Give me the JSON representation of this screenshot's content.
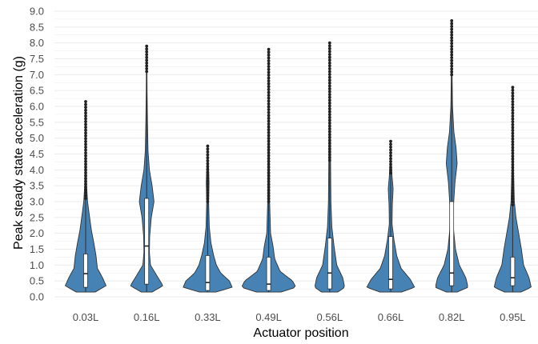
{
  "chart_data": {
    "type": "violin",
    "title": "",
    "xlabel": "Actuator position",
    "ylabel": "Peak steady state acceleration (g)",
    "ylim": [
      0,
      9
    ],
    "yticks": [
      "0.0",
      "0.5",
      "1.0",
      "1.5",
      "2.0",
      "2.5",
      "3.0",
      "3.5",
      "4.0",
      "4.5",
      "5.0",
      "5.5",
      "6.0",
      "6.5",
      "7.0",
      "7.5",
      "8.0",
      "8.5",
      "9.0"
    ],
    "grid": true,
    "colors": {
      "fill": "#4682b4",
      "outline": "#333333",
      "box": "#ffffff",
      "grid": "#ebebeb"
    },
    "categories": [
      "0.03L",
      "0.16L",
      "0.33L",
      "0.49L",
      "0.56L",
      "0.66L",
      "0.82L",
      "0.95L"
    ],
    "series": [
      {
        "category": "0.03L",
        "min": 0.15,
        "q1": 0.3,
        "median": 0.73,
        "q3": 1.35,
        "whisker_high": 3.1,
        "max": 6.15,
        "density": [
          [
            0.15,
            0.35
          ],
          [
            0.35,
            0.75
          ],
          [
            0.6,
            0.62
          ],
          [
            0.9,
            0.43
          ],
          [
            1.3,
            0.38
          ],
          [
            1.7,
            0.3
          ],
          [
            2.1,
            0.21
          ],
          [
            2.6,
            0.13
          ],
          [
            3.0,
            0.07
          ],
          [
            3.5,
            0.035
          ],
          [
            4.5,
            0.018
          ],
          [
            5.5,
            0.01
          ],
          [
            6.15,
            0
          ]
        ]
      },
      {
        "category": "0.16L",
        "min": 0.15,
        "q1": 0.4,
        "median": 1.6,
        "q3": 3.1,
        "whisker_high": 7.1,
        "max": 7.9,
        "density": [
          [
            0.15,
            0.2
          ],
          [
            0.35,
            0.6
          ],
          [
            0.6,
            0.42
          ],
          [
            1.0,
            0.14
          ],
          [
            1.4,
            0.1
          ],
          [
            1.9,
            0.11
          ],
          [
            2.5,
            0.17
          ],
          [
            3.0,
            0.27
          ],
          [
            3.5,
            0.2
          ],
          [
            4.0,
            0.1
          ],
          [
            4.6,
            0.05
          ],
          [
            5.5,
            0.03
          ],
          [
            6.5,
            0.015
          ],
          [
            7.5,
            0.008
          ],
          [
            7.9,
            0
          ]
        ]
      },
      {
        "category": "0.33L",
        "min": 0.15,
        "q1": 0.2,
        "median": 0.45,
        "q3": 1.3,
        "whisker_high": 3.0,
        "max": 4.75,
        "density": [
          [
            0.15,
            0.3
          ],
          [
            0.3,
            0.9
          ],
          [
            0.5,
            0.8
          ],
          [
            0.75,
            0.48
          ],
          [
            1.0,
            0.32
          ],
          [
            1.3,
            0.22
          ],
          [
            1.7,
            0.12
          ],
          [
            2.2,
            0.06
          ],
          [
            3.0,
            0.035
          ],
          [
            3.6,
            0.05
          ],
          [
            4.0,
            0.035
          ],
          [
            4.75,
            0
          ]
        ]
      },
      {
        "category": "0.49L",
        "min": 0.15,
        "q1": 0.2,
        "median": 0.4,
        "q3": 1.25,
        "whisker_high": 3.0,
        "max": 7.8,
        "density": [
          [
            0.15,
            0.45
          ],
          [
            0.3,
            1.0
          ],
          [
            0.5,
            0.88
          ],
          [
            0.8,
            0.42
          ],
          [
            1.2,
            0.22
          ],
          [
            1.6,
            0.16
          ],
          [
            2.0,
            0.07
          ],
          [
            3.0,
            0.035
          ],
          [
            4.0,
            0.03
          ],
          [
            5.0,
            0.022
          ],
          [
            6.0,
            0.012
          ],
          [
            7.0,
            0.008
          ],
          [
            7.8,
            0
          ]
        ]
      },
      {
        "category": "0.56L",
        "min": 0.15,
        "q1": 0.25,
        "median": 0.75,
        "q3": 1.85,
        "whisker_high": 4.3,
        "max": 8.0,
        "density": [
          [
            0.15,
            0.3
          ],
          [
            0.3,
            0.55
          ],
          [
            0.6,
            0.48
          ],
          [
            1.0,
            0.26
          ],
          [
            1.6,
            0.16
          ],
          [
            2.2,
            0.08
          ],
          [
            3.0,
            0.045
          ],
          [
            4.0,
            0.035
          ],
          [
            5.0,
            0.028
          ],
          [
            6.0,
            0.022
          ],
          [
            7.0,
            0.012
          ],
          [
            8.0,
            0
          ]
        ]
      },
      {
        "category": "0.66L",
        "min": 0.15,
        "q1": 0.25,
        "median": 0.55,
        "q3": 1.9,
        "whisker_high": 3.9,
        "max": 4.9,
        "density": [
          [
            0.15,
            0.4
          ],
          [
            0.3,
            0.88
          ],
          [
            0.55,
            0.72
          ],
          [
            0.9,
            0.38
          ],
          [
            1.3,
            0.22
          ],
          [
            1.8,
            0.12
          ],
          [
            2.3,
            0.05
          ],
          [
            2.9,
            0.06
          ],
          [
            3.4,
            0.09
          ],
          [
            3.8,
            0.05
          ],
          [
            4.3,
            0.02
          ],
          [
            4.9,
            0
          ]
        ]
      },
      {
        "category": "0.82L",
        "min": 0.15,
        "q1": 0.35,
        "median": 0.75,
        "q3": 3.0,
        "whisker_high": 7.0,
        "max": 8.7,
        "density": [
          [
            0.15,
            0.2
          ],
          [
            0.3,
            0.6
          ],
          [
            0.6,
            0.52
          ],
          [
            1.0,
            0.28
          ],
          [
            1.5,
            0.14
          ],
          [
            2.1,
            0.07
          ],
          [
            2.8,
            0.06
          ],
          [
            3.6,
            0.12
          ],
          [
            4.2,
            0.2
          ],
          [
            4.7,
            0.16
          ],
          [
            5.2,
            0.08
          ],
          [
            6.0,
            0.03
          ],
          [
            7.0,
            0.015
          ],
          [
            8.0,
            0.008
          ],
          [
            8.7,
            0
          ]
        ]
      },
      {
        "category": "0.95L",
        "min": 0.15,
        "q1": 0.35,
        "median": 0.6,
        "q3": 1.25,
        "whisker_high": 2.9,
        "max": 6.6,
        "density": [
          [
            0.15,
            0.3
          ],
          [
            0.3,
            0.68
          ],
          [
            0.6,
            0.6
          ],
          [
            1.0,
            0.4
          ],
          [
            1.5,
            0.32
          ],
          [
            2.0,
            0.22
          ],
          [
            2.5,
            0.12
          ],
          [
            3.0,
            0.06
          ],
          [
            4.0,
            0.03
          ],
          [
            5.0,
            0.02
          ],
          [
            6.0,
            0.012
          ],
          [
            6.6,
            0
          ]
        ]
      }
    ]
  }
}
